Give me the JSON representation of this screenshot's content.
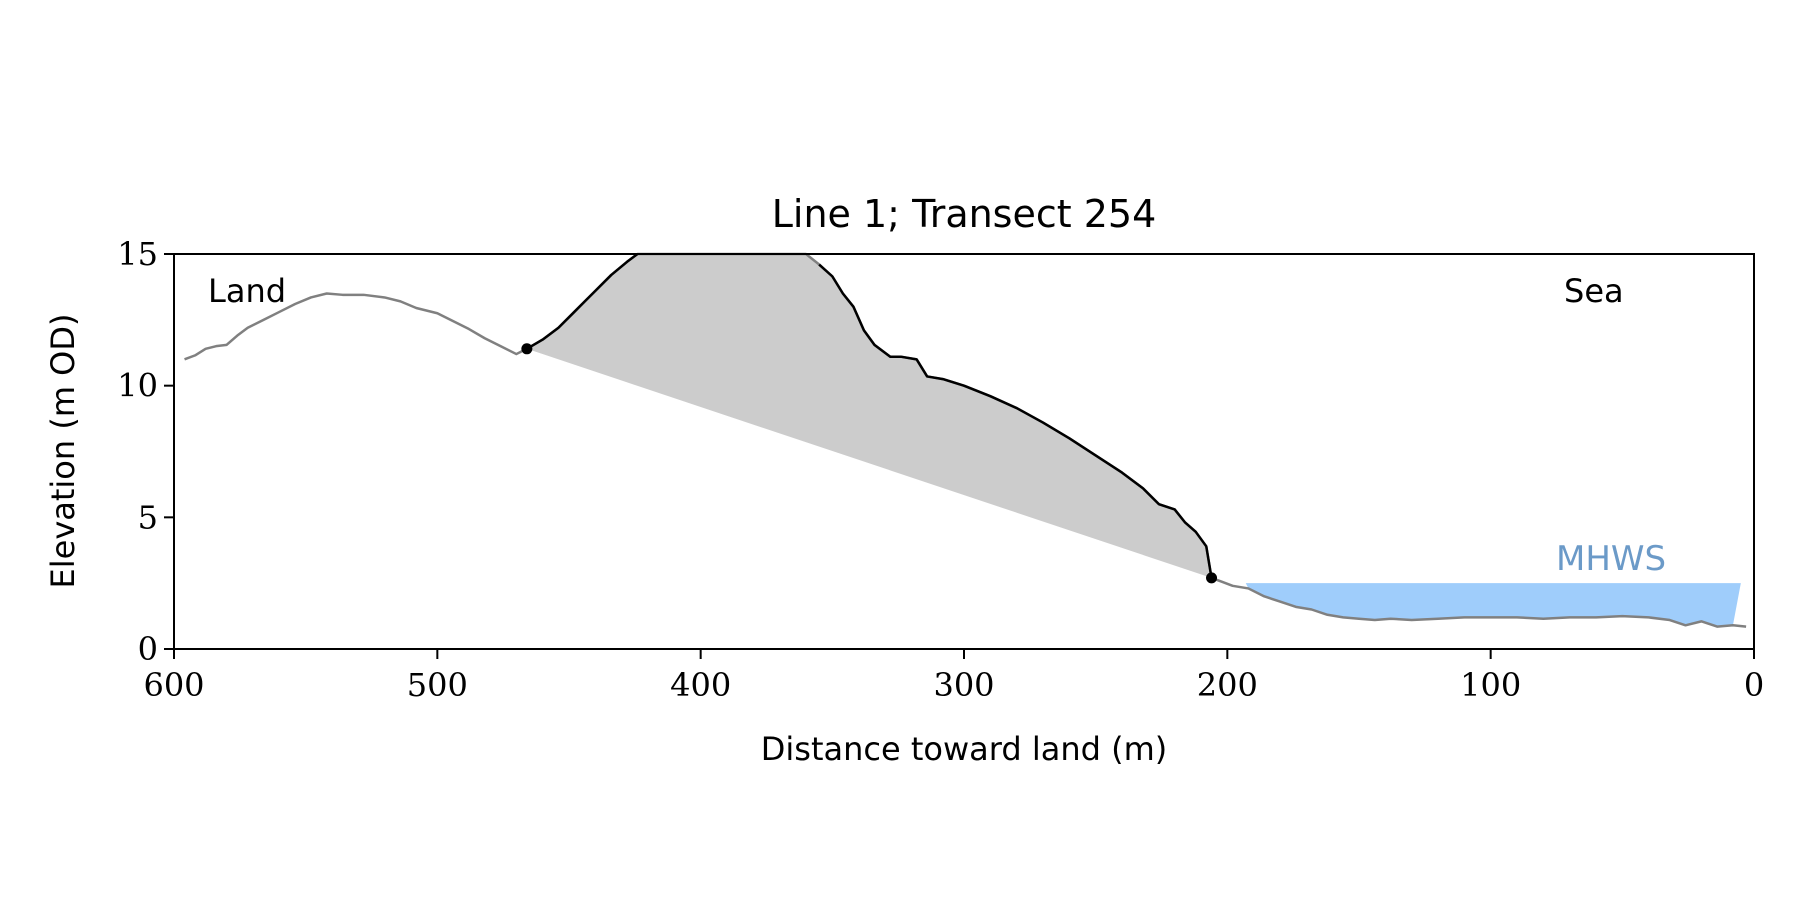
{
  "chart_data": {
    "type": "line",
    "title": "Line 1; Transect 254",
    "xlabel": "Distance toward land (m)",
    "ylabel": "Elevation (m OD)",
    "xlim": [
      600,
      0
    ],
    "ylim": [
      0,
      15
    ],
    "x_ticks": [
      600,
      500,
      400,
      300,
      200,
      100,
      0
    ],
    "y_ticks": [
      0,
      5,
      10,
      15
    ],
    "grid": false,
    "annotations": {
      "land": "Land",
      "sea": "Sea",
      "mhws": "MHWS"
    },
    "colors": {
      "profile": "#808080",
      "highlight": "#000000",
      "fill": "#cccccc",
      "water": "#9fcdfb",
      "mhws_label": "#6b9ac8"
    },
    "mhws": {
      "level": 2.5,
      "x_start": 193,
      "x_end": 5
    },
    "markers": [
      {
        "x": 466,
        "y": 11.4
      },
      {
        "x": 206,
        "y": 2.7
      }
    ],
    "series": [
      {
        "values": [
          [
            596,
            11.0
          ],
          [
            592,
            11.15
          ],
          [
            588,
            11.4
          ],
          [
            584,
            11.5
          ],
          [
            580,
            11.55
          ],
          [
            576,
            11.9
          ],
          [
            572,
            12.2
          ],
          [
            566,
            12.5
          ],
          [
            560,
            12.8
          ],
          [
            554,
            13.1
          ],
          [
            548,
            13.35
          ],
          [
            542,
            13.5
          ],
          [
            536,
            13.45
          ],
          [
            528,
            13.45
          ],
          [
            520,
            13.35
          ],
          [
            514,
            13.2
          ],
          [
            508,
            12.95
          ],
          [
            500,
            12.75
          ],
          [
            494,
            12.45
          ],
          [
            488,
            12.15
          ],
          [
            482,
            11.8
          ],
          [
            476,
            11.5
          ],
          [
            470,
            11.2
          ],
          [
            466,
            11.4
          ],
          [
            460,
            11.75
          ],
          [
            454,
            12.2
          ],
          [
            448,
            12.8
          ],
          [
            444,
            13.2
          ],
          [
            440,
            13.6
          ],
          [
            434,
            14.2
          ],
          [
            428,
            14.7
          ],
          [
            424,
            15.0
          ],
          [
            360,
            15.0
          ],
          [
            355,
            14.6
          ],
          [
            350,
            14.15
          ],
          [
            346,
            13.5
          ],
          [
            342,
            13.0
          ],
          [
            338,
            12.1
          ],
          [
            334,
            11.55
          ],
          [
            328,
            11.1
          ],
          [
            324,
            11.1
          ],
          [
            318,
            11.0
          ],
          [
            314,
            10.35
          ],
          [
            308,
            10.25
          ],
          [
            300,
            10.0
          ],
          [
            290,
            9.6
          ],
          [
            280,
            9.15
          ],
          [
            270,
            8.6
          ],
          [
            260,
            8.0
          ],
          [
            250,
            7.35
          ],
          [
            240,
            6.7
          ],
          [
            232,
            6.1
          ],
          [
            226,
            5.5
          ],
          [
            220,
            5.3
          ],
          [
            216,
            4.8
          ],
          [
            212,
            4.45
          ],
          [
            208,
            3.9
          ],
          [
            206,
            2.7
          ],
          [
            202,
            2.55
          ],
          [
            198,
            2.4
          ],
          [
            192,
            2.3
          ],
          [
            186,
            2.0
          ],
          [
            180,
            1.8
          ],
          [
            174,
            1.6
          ],
          [
            168,
            1.5
          ],
          [
            162,
            1.3
          ],
          [
            156,
            1.2
          ],
          [
            150,
            1.15
          ],
          [
            144,
            1.1
          ],
          [
            138,
            1.15
          ],
          [
            130,
            1.1
          ],
          [
            120,
            1.15
          ],
          [
            110,
            1.2
          ],
          [
            100,
            1.2
          ],
          [
            90,
            1.2
          ],
          [
            80,
            1.15
          ],
          [
            70,
            1.2
          ],
          [
            60,
            1.2
          ],
          [
            50,
            1.25
          ],
          [
            40,
            1.2
          ],
          [
            32,
            1.1
          ],
          [
            26,
            0.9
          ],
          [
            20,
            1.05
          ],
          [
            14,
            0.85
          ],
          [
            8,
            0.9
          ],
          [
            3,
            0.85
          ]
        ]
      }
    ]
  }
}
